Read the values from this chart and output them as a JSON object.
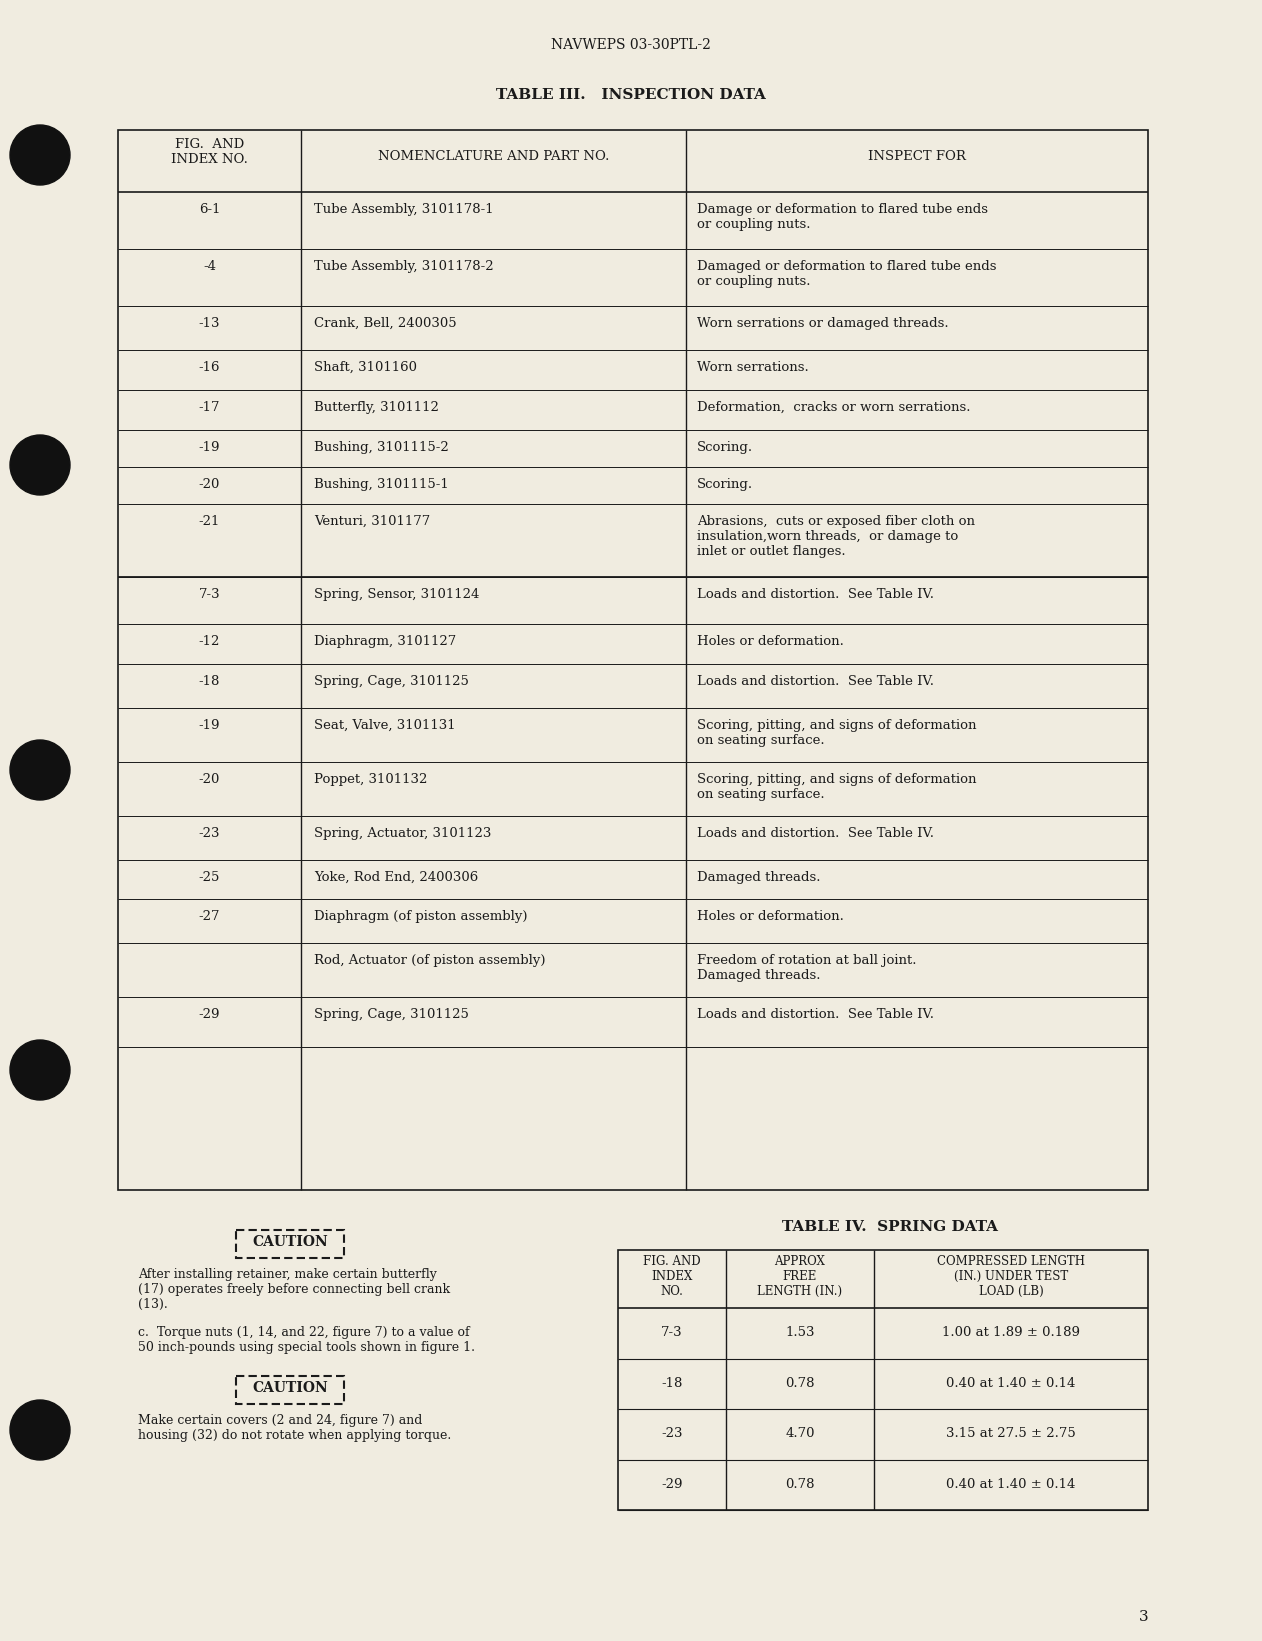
{
  "page_bg": "#f0ece0",
  "header_text": "NAVWEPS 03-30PTL-2",
  "table3_title": "TABLE III.   INSPECTION DATA",
  "table3_rows": [
    [
      "6-1",
      "Tube Assembly, 3101178-1",
      "Damage or deformation to flared tube ends\nor coupling nuts."
    ],
    [
      "-4",
      "Tube Assembly, 3101178-2",
      "Damaged or deformation to flared tube ends\nor coupling nuts."
    ],
    [
      "-13",
      "Crank, Bell, 2400305",
      "Worn serrations or damaged threads."
    ],
    [
      "-16",
      "Shaft, 3101160",
      "Worn serrations."
    ],
    [
      "-17",
      "Butterfly, 3101112",
      "Deformation,  cracks or worn serrations."
    ],
    [
      "-19",
      "Bushing, 3101115-2",
      "Scoring."
    ],
    [
      "-20",
      "Bushing, 3101115-1",
      "Scoring."
    ],
    [
      "-21",
      "Venturi, 3101177",
      "Abrasions,  cuts or exposed fiber cloth on\ninsulation,worn threads,  or damage to\ninlet or outlet flanges."
    ],
    [
      "7-3",
      "Spring, Sensor, 3101124",
      "Loads and distortion.  See Table IV."
    ],
    [
      "-12",
      "Diaphragm, 3101127",
      "Holes or deformation."
    ],
    [
      "-18",
      "Spring, Cage, 3101125",
      "Loads and distortion.  See Table IV."
    ],
    [
      "-19",
      "Seat, Valve, 3101131",
      "Scoring, pitting, and signs of deformation\non seating surface."
    ],
    [
      "-20",
      "Poppet, 3101132",
      "Scoring, pitting, and signs of deformation\non seating surface."
    ],
    [
      "-23",
      "Spring, Actuator, 3101123",
      "Loads and distortion.  See Table IV."
    ],
    [
      "-25",
      "Yoke, Rod End, 2400306",
      "Damaged threads."
    ],
    [
      "-27",
      "Diaphragm (of piston assembly)",
      "Holes or deformation."
    ],
    [
      "",
      "Rod, Actuator (of piston assembly)",
      "Freedom of rotation at ball joint.\nDamaged threads."
    ],
    [
      "-29",
      "Spring, Cage, 3101125",
      "Loads and distortion.  See Table IV."
    ]
  ],
  "caution1_text": "After installing retainer, make certain butterfly\n(17) operates freely before connecting bell crank\n(13).",
  "torque_text": "c.  Torque nuts (1, 14, and 22, figure 7) to a value of\n50 inch-pounds using special tools shown in figure 1.",
  "caution2_text": "Make certain covers (2 and 24, figure 7) and\nhousing (32) do not rotate when applying torque.",
  "table4_title": "TABLE IV.  SPRING DATA",
  "table4_rows": [
    [
      "7-3",
      "1.53",
      "1.00 at 1.89 ± 0.189"
    ],
    [
      "-18",
      "0.78",
      "0.40 at 1.40 ± 0.14"
    ],
    [
      "-23",
      "4.70",
      "3.15 at 27.5 ± 2.75"
    ],
    [
      "-29",
      "0.78",
      "0.40 at 1.40 ± 0.14"
    ]
  ],
  "page_number": "3",
  "text_color": "#1a1a1a",
  "line_color": "#1a1a1a"
}
